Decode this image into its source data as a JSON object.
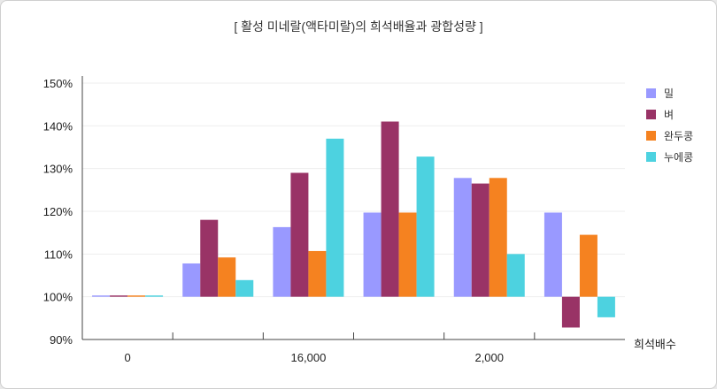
{
  "chart_data": {
    "type": "bar",
    "title": "[ 활성 미네랄(액타미랄)의 희석배율과 광합성량 ]",
    "xlabel": "희석배수",
    "ylabel": "",
    "ylim": [
      90,
      150
    ],
    "yticks": [
      "90%",
      "100%",
      "110%",
      "120%",
      "130%",
      "140%",
      "150%"
    ],
    "ytick_values": [
      90,
      100,
      110,
      120,
      130,
      140,
      150
    ],
    "categories": [
      "0",
      "",
      "16,000",
      "",
      "2,000",
      ""
    ],
    "series": [
      {
        "name": "밀",
        "color": "#9999ff",
        "values": [
          100.3,
          107.8,
          116.3,
          119.7,
          127.8,
          119.7
        ]
      },
      {
        "name": "벼",
        "color": "#993366",
        "values": [
          100.3,
          118.0,
          129.0,
          141.0,
          126.5,
          92.8
        ]
      },
      {
        "name": "완두콩",
        "color": "#f58220",
        "values": [
          100.3,
          109.2,
          110.7,
          119.7,
          127.8,
          114.5
        ]
      },
      {
        "name": "누에콩",
        "color": "#4dd2e0",
        "values": [
          100.3,
          103.9,
          137.0,
          132.8,
          110.0,
          95.2
        ]
      }
    ],
    "grid": true,
    "legend_position": "right"
  }
}
